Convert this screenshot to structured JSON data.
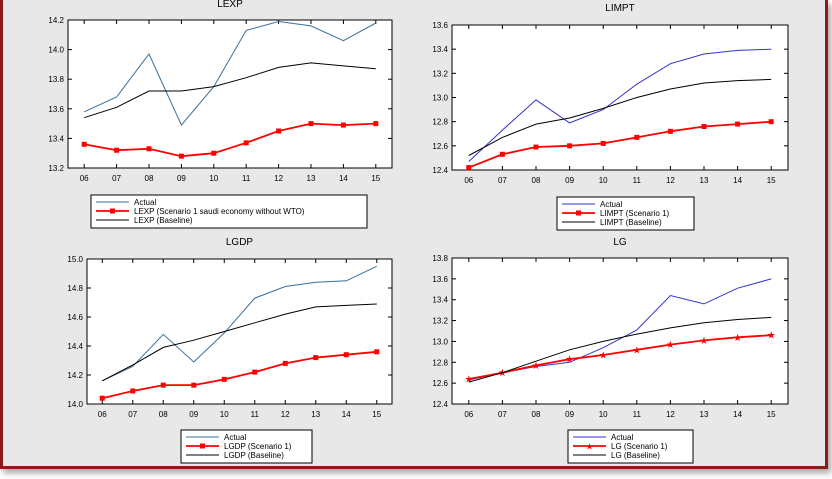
{
  "colors": {
    "actual_blue": "#3333cc",
    "actual_blue_steel": "#3a6f9c",
    "scenario_red": "#ff0000",
    "baseline_black": "#000000",
    "frame_border": "#8b1a1a",
    "panel_bg": "#e8e8e8"
  },
  "chart_data": [
    {
      "type": "line",
      "title": "LEXP",
      "x": [
        "06",
        "07",
        "08",
        "09",
        "10",
        "11",
        "12",
        "13",
        "14",
        "15"
      ],
      "ylim": [
        13.2,
        14.2
      ],
      "yticks": [
        13.2,
        13.4,
        13.6,
        13.8,
        14.0,
        14.2
      ],
      "ytick_labels": [
        "13.2",
        "13.4",
        "13.6",
        "13.8",
        "14.0",
        "14.2"
      ],
      "series": [
        {
          "name": "Actual",
          "color": "#3a6f9c",
          "marker": "none",
          "values": [
            13.58,
            13.68,
            13.97,
            13.49,
            13.75,
            14.13,
            14.19,
            14.16,
            14.06,
            14.18
          ]
        },
        {
          "name": "LEXP (Scenario 1 saudi economy without WTO)",
          "color": "#ff0000",
          "marker": "square",
          "values": [
            13.36,
            13.32,
            13.33,
            13.28,
            13.3,
            13.37,
            13.45,
            13.5,
            13.49,
            13.5
          ]
        },
        {
          "name": "LEXP (Baseline)",
          "color": "#000000",
          "marker": "none",
          "values": [
            13.54,
            13.61,
            13.72,
            13.72,
            13.75,
            13.81,
            13.88,
            13.91,
            13.89,
            13.87
          ]
        }
      ]
    },
    {
      "type": "line",
      "title": "LIMPT",
      "x": [
        "06",
        "07",
        "08",
        "09",
        "10",
        "11",
        "12",
        "13",
        "14",
        "15"
      ],
      "ylim": [
        12.4,
        13.6
      ],
      "yticks": [
        12.4,
        12.6,
        12.8,
        13.0,
        13.2,
        13.4,
        13.6
      ],
      "ytick_labels": [
        "12.4",
        "12.6",
        "12.8",
        "13.0",
        "13.2",
        "13.4",
        "13.6"
      ],
      "series": [
        {
          "name": "Actual",
          "color": "#3333cc",
          "marker": "none",
          "values": [
            12.47,
            12.73,
            12.98,
            12.79,
            12.9,
            13.11,
            13.28,
            13.36,
            13.39,
            13.4
          ]
        },
        {
          "name": "LIMPT (Scenario 1)",
          "color": "#ff0000",
          "marker": "square",
          "values": [
            12.42,
            12.53,
            12.59,
            12.6,
            12.62,
            12.67,
            12.72,
            12.76,
            12.78,
            12.8
          ]
        },
        {
          "name": "LIMPT (Baseline)",
          "color": "#000000",
          "marker": "none",
          "values": [
            12.52,
            12.67,
            12.78,
            12.83,
            12.91,
            13.0,
            13.07,
            13.12,
            13.14,
            13.15
          ]
        }
      ]
    },
    {
      "type": "line",
      "title": "LGDP",
      "x": [
        "06",
        "07",
        "08",
        "09",
        "10",
        "11",
        "12",
        "13",
        "14",
        "15"
      ],
      "ylim": [
        14.0,
        15.0
      ],
      "yticks": [
        14.0,
        14.2,
        14.4,
        14.6,
        14.8,
        15.0
      ],
      "ytick_labels": [
        "14.0",
        "14.2",
        "14.4",
        "14.6",
        "14.8",
        "15.0"
      ],
      "series": [
        {
          "name": "Actual",
          "color": "#3a6f9c",
          "marker": "none",
          "values": [
            14.16,
            14.26,
            14.48,
            14.29,
            14.49,
            14.73,
            14.81,
            14.84,
            14.85,
            14.95
          ]
        },
        {
          "name": "LGDP (Scenario 1)",
          "color": "#ff0000",
          "marker": "square",
          "values": [
            14.04,
            14.09,
            14.13,
            14.13,
            14.17,
            14.22,
            14.28,
            14.32,
            14.34,
            14.36
          ]
        },
        {
          "name": "LGDP (Baseline)",
          "color": "#000000",
          "marker": "none",
          "values": [
            14.16,
            14.27,
            14.39,
            14.44,
            14.5,
            14.56,
            14.62,
            14.67,
            14.68,
            14.69
          ]
        }
      ]
    },
    {
      "type": "line",
      "title": "LG",
      "x": [
        "06",
        "07",
        "08",
        "09",
        "10",
        "11",
        "12",
        "13",
        "14",
        "15"
      ],
      "ylim": [
        12.4,
        13.8
      ],
      "yticks": [
        12.4,
        12.6,
        12.8,
        13.0,
        13.2,
        13.4,
        13.6,
        13.8
      ],
      "ytick_labels": [
        "12.4",
        "12.6",
        "12.8",
        "13.0",
        "13.2",
        "13.4",
        "13.6",
        "13.8"
      ],
      "series": [
        {
          "name": "Actual",
          "color": "#3333cc",
          "marker": "none",
          "values": [
            12.63,
            12.7,
            12.76,
            12.8,
            12.94,
            13.11,
            13.44,
            13.36,
            13.51,
            13.6
          ]
        },
        {
          "name": "LG (Scenario 1)",
          "color": "#ff0000",
          "marker": "star",
          "values": [
            12.64,
            12.7,
            12.77,
            12.83,
            12.87,
            12.92,
            12.97,
            13.01,
            13.04,
            13.06
          ]
        },
        {
          "name": "LG (Baseline)",
          "color": "#000000",
          "marker": "none",
          "values": [
            12.61,
            12.7,
            12.81,
            12.92,
            13.0,
            13.07,
            13.13,
            13.18,
            13.21,
            13.23
          ]
        }
      ]
    }
  ]
}
